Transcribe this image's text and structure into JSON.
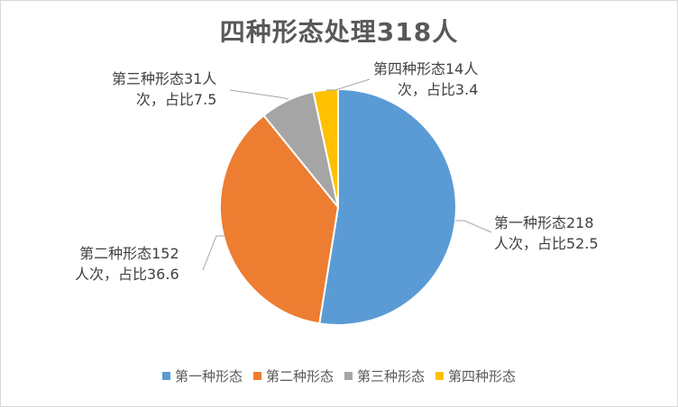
{
  "chart_data": {
    "type": "pie",
    "title": "四种形态处理318人",
    "categories": [
      "第一种形态",
      "第二种形态",
      "第三种形态",
      "第四种形态"
    ],
    "values": [
      218,
      152,
      31,
      14
    ],
    "colors": [
      "#5b9bd5",
      "#ed7d31",
      "#a5a5a5",
      "#ffc000"
    ],
    "data_labels": [
      [
        "第一种形态218",
        "人次，占比52.5"
      ],
      [
        "第二种形态152",
        "人次，占比36.6"
      ],
      [
        "第三种形态31人",
        "次，占比7.5"
      ],
      [
        "第四种形态14人",
        "次，占比3.4"
      ]
    ],
    "legend_position": "bottom"
  }
}
